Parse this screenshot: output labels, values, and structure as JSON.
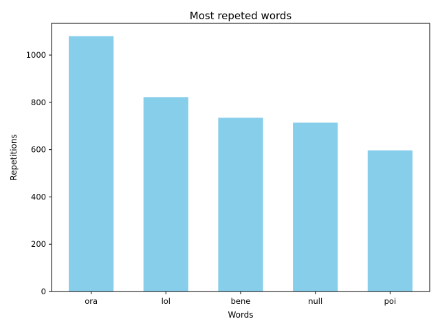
{
  "chart_data": {
    "type": "bar",
    "title": "Most repeted words",
    "xlabel": "Words",
    "ylabel": "Repetitions",
    "categories": [
      "ora",
      "lol",
      "bene",
      "null",
      "poi"
    ],
    "values": [
      1080,
      822,
      735,
      714,
      597
    ],
    "ylim": [
      0,
      1134
    ],
    "yticks": [
      0,
      200,
      400,
      600,
      800,
      1000
    ],
    "bar_color": "#87CEEB",
    "grid": false,
    "legend": "none"
  }
}
